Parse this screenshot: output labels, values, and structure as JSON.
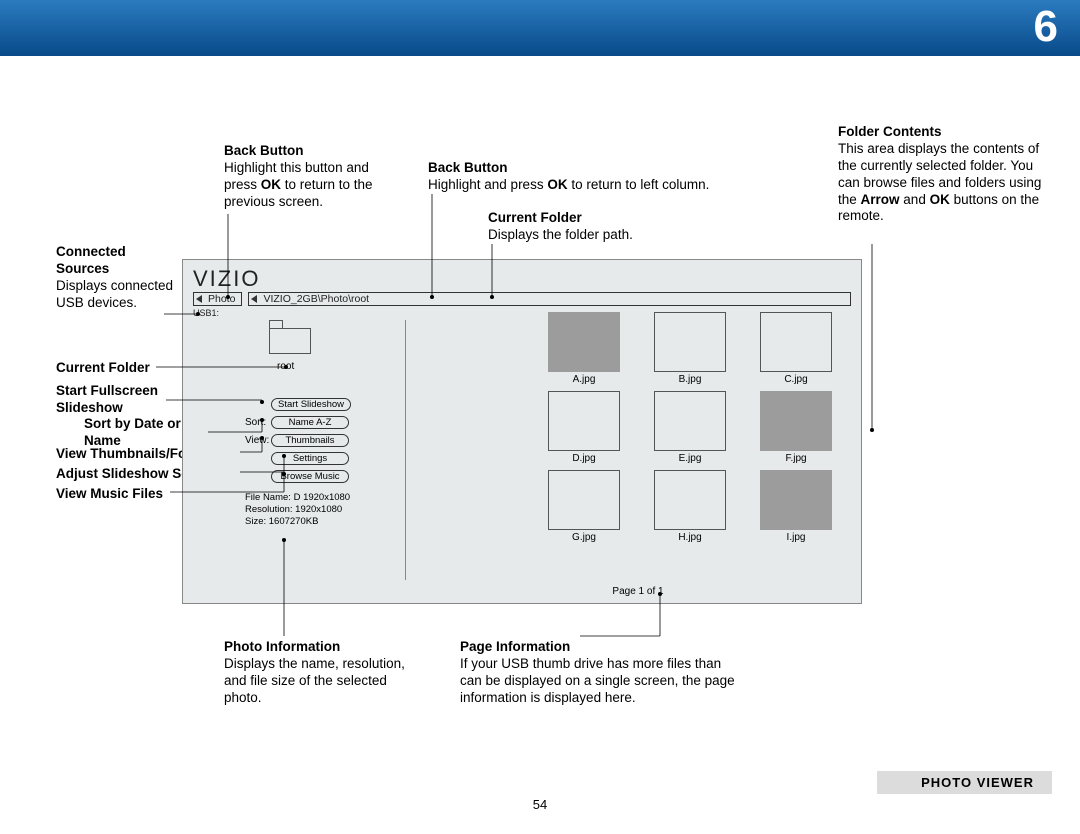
{
  "chapter": "6",
  "pagenum": "54",
  "sectionlabel": "PHOTO VIEWER",
  "callouts": {
    "back1": {
      "title": "Back Button",
      "body": "Highlight this button and press <b>OK</b> to return to the previous screen."
    },
    "back2": {
      "title": "Back Button",
      "body": "Highlight and press <b>OK</b> to return to left column."
    },
    "curfolder_top": {
      "title": "Current Folder",
      "body": "Displays the folder path."
    },
    "connected": {
      "title": "Connected Sources",
      "body": "Displays connected USB devices."
    },
    "curfolder_left": {
      "title": "Current Folder"
    },
    "startss": {
      "title": "Start Fullscreen Slideshow"
    },
    "sort": {
      "title": "Sort by Date or File Name"
    },
    "viewthumb": {
      "title": "View Thumbnails/Folders"
    },
    "adjust": {
      "title": "Adjust Slideshow Settings"
    },
    "music": {
      "title": "View Music Files"
    },
    "photoinfo": {
      "title": "Photo Information",
      "body": "Displays the name, resolution, and file size of the selected photo."
    },
    "pageinfo": {
      "title": "Page Information",
      "body": "If your USB thumb drive has more files than can be displayed on a single screen, the page information is displayed here."
    },
    "foldercontents": {
      "title": "Folder Contents",
      "body": "This area displays the contents of the currently selected folder. You can browse files and folders using the <b>Arrow</b> and <b>OK</b> buttons on the remote."
    }
  },
  "tv": {
    "brand": "VIZIO",
    "path1": "Photo",
    "path2": "VIZIO_2GB\\Photo\\root",
    "usb": "USB1:",
    "folder_label": "root",
    "buttons": {
      "start": "Start Slideshow",
      "sort_lbl": "Sort:",
      "sort": "Name A-Z",
      "view_lbl": "View:",
      "view": "Thumbnails",
      "settings": "Settings",
      "music": "Browse Music"
    },
    "fileinfo": {
      "l1": "File Name: D 1920x1080",
      "l2": "Resolution: 1920x1080",
      "l3": "Size:           1607270KB"
    },
    "thumbs": [
      {
        "name": "",
        "grey": false
      },
      {
        "name": "A.jpg",
        "grey": true
      },
      {
        "name": "B.jpg",
        "grey": false
      },
      {
        "name": "C.jpg",
        "grey": false
      },
      {
        "name": "D.jpg",
        "grey": false
      },
      {
        "name": "E.jpg",
        "grey": false
      },
      {
        "name": "F.jpg",
        "grey": true
      },
      {
        "name": "G.jpg",
        "grey": false
      },
      {
        "name": "H.jpg",
        "grey": false
      },
      {
        "name": "I.jpg",
        "grey": true
      }
    ],
    "page": "Page 1 of 1"
  }
}
